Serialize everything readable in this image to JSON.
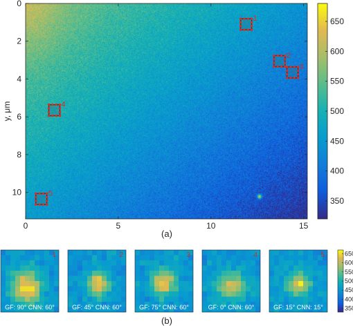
{
  "chart_data": [
    {
      "type": "heatmap",
      "panel_label": "(a)",
      "ylabel": "y, μm",
      "xlabel": "",
      "xlim": [
        0,
        15.2
      ],
      "ylim": [
        11.4,
        0
      ],
      "x_ticks": [
        "0",
        "5",
        "10",
        "15"
      ],
      "y_ticks": [
        "0",
        "2",
        "4",
        "6",
        "8",
        "10"
      ],
      "colorbar": {
        "range": [
          320,
          680
        ],
        "ticks": [
          "350",
          "400",
          "450",
          "500",
          "550",
          "600",
          "650"
        ],
        "colormap": "parula"
      },
      "markers": [
        {
          "label": "1",
          "x": 11.9,
          "y": 1.1
        },
        {
          "label": "2",
          "x": 13.7,
          "y": 3.05
        },
        {
          "label": "3",
          "x": 14.4,
          "y": 3.65
        },
        {
          "label": "4",
          "x": 1.55,
          "y": 5.65
        },
        {
          "label": "5",
          "x": 0.85,
          "y": 10.35
        }
      ],
      "bright_spot": {
        "x": 12.6,
        "y": 10.2
      }
    },
    {
      "type": "heatmap",
      "panel_label": "(b)",
      "colorbar": {
        "range": [
          330,
          670
        ],
        "ticks": [
          "350",
          "400",
          "450",
          "500",
          "550",
          "600",
          "650"
        ],
        "colormap": "parula"
      },
      "panels": [
        {
          "number": "1",
          "caption": "GF: 90°  CNN: 60°",
          "spot_x": 0.45,
          "spot_y": 0.62,
          "sx": 0.17,
          "sy": 0.2,
          "peak": 660
        },
        {
          "number": "2",
          "caption": "GF: 45°  CNN: 60°",
          "spot_x": 0.52,
          "spot_y": 0.55,
          "sx": 0.14,
          "sy": 0.13,
          "peak": 640
        },
        {
          "number": "3",
          "caption": "GF: 75°  CNN: 60°",
          "spot_x": 0.5,
          "spot_y": 0.52,
          "sx": 0.14,
          "sy": 0.15,
          "peak": 650
        },
        {
          "number": "4",
          "caption": "GF: 0°  CNN: 60°",
          "spot_x": 0.48,
          "spot_y": 0.58,
          "sx": 0.2,
          "sy": 0.16,
          "peak": 600
        },
        {
          "number": "5",
          "caption": "GF: 15°  CNN: 15°",
          "spot_x": 0.5,
          "spot_y": 0.55,
          "sx": 0.15,
          "sy": 0.13,
          "peak": 630
        }
      ]
    }
  ]
}
